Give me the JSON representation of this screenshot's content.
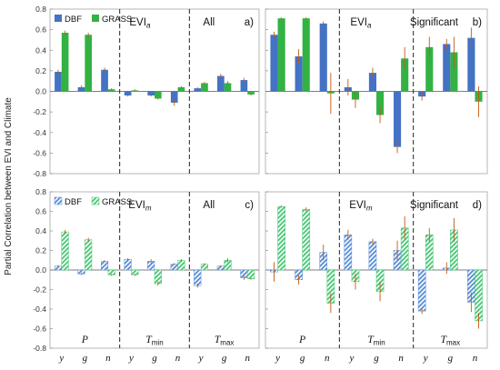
{
  "figure": {
    "ylabel": "Partial Correlation between EVI and Climate",
    "colors": {
      "dbf": "#4472C4",
      "grass": "#33B244",
      "dbf_hatch": "#9DC3E6",
      "grass_hatch": "#8EE0A8",
      "error": "#C55A11"
    }
  },
  "chart_data": [
    {
      "id": "a",
      "type": "bar",
      "title_main": "EVI",
      "title_sub": "a",
      "subset": "All",
      "letter": "a)",
      "style": "solid",
      "legend": {
        "placement": "top-left",
        "entries": [
          "DBF",
          "GRASS"
        ]
      },
      "ylim": [
        -0.8,
        0.8
      ],
      "yticks": [
        "0.8",
        "0.6",
        "0.4",
        "0.2",
        "0.0",
        "-0.2",
        "-0.4",
        "-0.6",
        "-0.8"
      ],
      "categories": [
        "y",
        "g",
        "n",
        "y",
        "g",
        "n",
        "y",
        "g",
        "n"
      ],
      "groups": [],
      "series": [
        {
          "name": "DBF",
          "values": [
            0.19,
            0.04,
            0.21,
            -0.04,
            -0.04,
            -0.11,
            0.03,
            0.15,
            0.11
          ],
          "err": [
            0.02,
            0.02,
            0.02,
            0.01,
            0.01,
            0.03,
            0.01,
            0.02,
            0.02
          ]
        },
        {
          "name": "GRASS",
          "values": [
            0.57,
            0.55,
            0.02,
            0.01,
            -0.07,
            0.04,
            0.08,
            0.08,
            -0.03
          ],
          "err": [
            0.02,
            0.02,
            0.01,
            0.01,
            0.01,
            0.01,
            0.01,
            0.02,
            0.01
          ]
        }
      ]
    },
    {
      "id": "b",
      "type": "bar",
      "title_main": "EVI",
      "title_sub": "a",
      "subset": "Significant",
      "letter": "b)",
      "style": "solid",
      "legend": null,
      "ylim": [
        -0.8,
        0.8
      ],
      "yticks": [],
      "categories": [
        "y",
        "g",
        "n",
        "y",
        "g",
        "n",
        "y",
        "g",
        "n"
      ],
      "groups": [],
      "series": [
        {
          "name": "DBF",
          "values": [
            0.55,
            0.34,
            0.66,
            0.04,
            0.18,
            -0.54,
            -0.05,
            0.46,
            0.52
          ],
          "err": [
            0.03,
            0.07,
            0.02,
            0.08,
            0.05,
            0.06,
            0.04,
            0.05,
            0.1
          ]
        },
        {
          "name": "GRASS",
          "values": [
            0.71,
            0.71,
            -0.02,
            -0.08,
            -0.23,
            0.32,
            0.43,
            0.38,
            -0.1
          ],
          "err": [
            0.01,
            0.01,
            0.2,
            0.08,
            0.08,
            0.11,
            0.1,
            0.15,
            0.15
          ]
        }
      ]
    },
    {
      "id": "c",
      "type": "bar",
      "title_main": "EVI",
      "title_sub": "m",
      "subset": "All",
      "letter": "c)",
      "style": "hatched",
      "legend": {
        "placement": "top-left",
        "entries": [
          "DBF",
          "GRASS"
        ]
      },
      "ylim": [
        -0.8,
        0.8
      ],
      "yticks": [
        "0.8",
        "0.6",
        "0.4",
        "0.2",
        "0.0",
        "-0.2",
        "-0.4",
        "-0.6",
        "-0.8"
      ],
      "categories": [
        "y",
        "g",
        "n",
        "y",
        "g",
        "n",
        "y",
        "g",
        "n"
      ],
      "groups": [
        {
          "main": "P",
          "sub": ""
        },
        {
          "main": "T",
          "sub": "min"
        },
        {
          "main": "T",
          "sub": "max"
        }
      ],
      "series": [
        {
          "name": "DBF",
          "values": [
            0.04,
            -0.04,
            0.09,
            0.11,
            0.09,
            0.06,
            -0.16,
            0.04,
            -0.08
          ],
          "err": [
            0.01,
            0.01,
            0.01,
            0.01,
            0.02,
            0.01,
            0.02,
            0.01,
            0.02
          ]
        },
        {
          "name": "GRASS",
          "values": [
            0.39,
            0.31,
            -0.05,
            -0.05,
            -0.14,
            0.1,
            0.06,
            0.1,
            -0.09
          ],
          "err": [
            0.02,
            0.02,
            0.01,
            0.01,
            0.02,
            0.01,
            0.01,
            0.02,
            0.01
          ]
        }
      ]
    },
    {
      "id": "d",
      "type": "bar",
      "title_main": "EVI",
      "title_sub": "m",
      "subset": "Significant",
      "letter": "d)",
      "style": "hatched",
      "legend": null,
      "ylim": [
        -0.8,
        0.8
      ],
      "yticks": [],
      "categories": [
        "y",
        "g",
        "n",
        "y",
        "g",
        "n",
        "y",
        "g",
        "n"
      ],
      "groups": [
        {
          "main": "P",
          "sub": ""
        },
        {
          "main": "T",
          "sub": "min"
        },
        {
          "main": "T",
          "sub": "max"
        }
      ],
      "series": [
        {
          "name": "DBF",
          "values": [
            -0.02,
            -0.1,
            0.18,
            0.36,
            0.29,
            0.2,
            -0.42,
            0.02,
            -0.33
          ],
          "err": [
            0.1,
            0.05,
            0.08,
            0.05,
            0.03,
            0.1,
            0.03,
            0.06,
            0.1
          ]
        },
        {
          "name": "GRASS",
          "values": [
            0.65,
            0.62,
            -0.34,
            -0.12,
            -0.22,
            0.43,
            0.36,
            0.41,
            -0.52
          ],
          "err": [
            0.01,
            0.02,
            0.1,
            0.08,
            0.1,
            0.12,
            0.07,
            0.12,
            0.08
          ]
        }
      ]
    }
  ]
}
